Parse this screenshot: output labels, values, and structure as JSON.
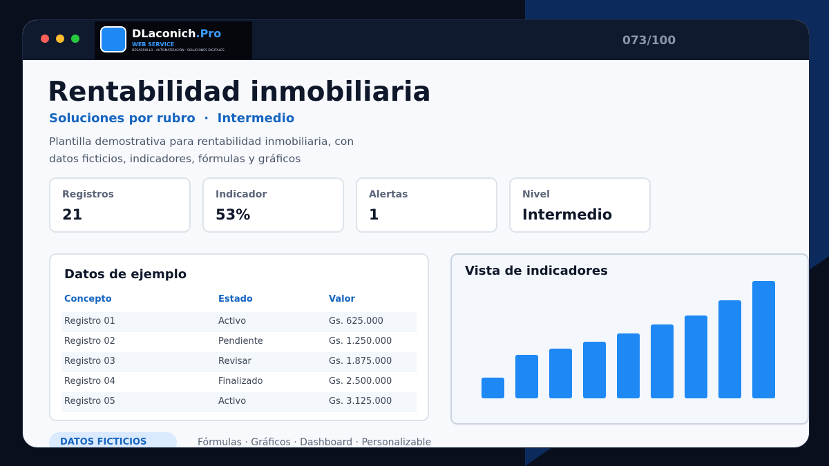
{
  "window": {
    "brand_name": "DLaconich",
    "brand_suffix": ".Pro",
    "brand_sub": "WEB SERVICE",
    "brand_tagline": "DESARROLLO · AUTOMATIZACIÓN · SOLUCIONES DIGITALES",
    "counter": "073/100"
  },
  "header": {
    "title": "Rentabilidad inmobiliaria",
    "subtitle": "Soluciones por rubro  ·  Intermedio",
    "description": "Plantilla demostrativa para rentabilidad inmobiliaria, con datos ficticios, indicadores, fórmulas y gráficos"
  },
  "kpis": [
    {
      "label": "Registros",
      "value": "21"
    },
    {
      "label": "Indicador",
      "value": "53%"
    },
    {
      "label": "Alertas",
      "value": "1"
    },
    {
      "label": "Nivel",
      "value": "Intermedio"
    }
  ],
  "table": {
    "title": "Datos de ejemplo",
    "columns": [
      "Concepto",
      "Estado",
      "Valor"
    ],
    "rows": [
      [
        "Registro 01",
        "Activo",
        "Gs. 625.000"
      ],
      [
        "Registro 02",
        "Pendiente",
        "Gs. 1.250.000"
      ],
      [
        "Registro 03",
        "Revisar",
        "Gs. 1.875.000"
      ],
      [
        "Registro 04",
        "Finalizado",
        "Gs. 2.500.000"
      ],
      [
        "Registro 05",
        "Activo",
        "Gs. 3.125.000"
      ]
    ]
  },
  "chart_data": {
    "type": "bar",
    "title": "Vista de indicadores",
    "values": [
      30,
      63,
      72,
      82,
      94,
      107,
      120,
      142,
      170
    ],
    "color": "#1e88f5"
  },
  "footer": {
    "badge": "DATOS FICTICIOS",
    "features": "Fórmulas · Gráficos · Dashboard · Personalizable"
  }
}
